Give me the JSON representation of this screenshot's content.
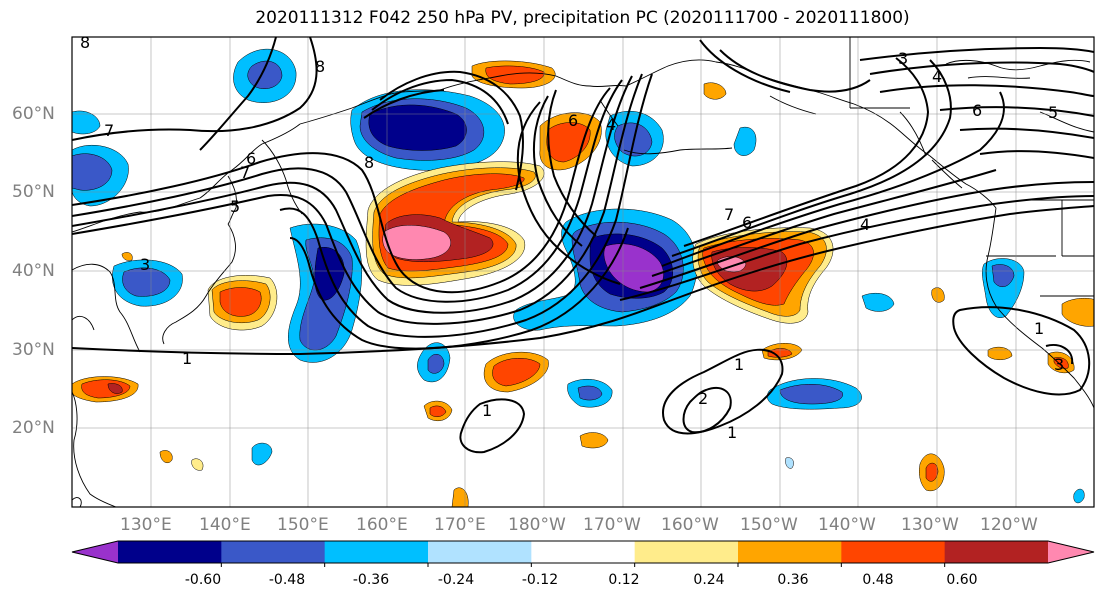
{
  "title": "2020111312 F042 250 hPa PV, precipitation PC (2020111700 - 2020111800)",
  "lon_labels": [
    "130°E",
    "140°E",
    "150°E",
    "160°E",
    "170°E",
    "180°W",
    "170°W",
    "160°W",
    "150°W",
    "140°W",
    "130°W",
    "120°W"
  ],
  "lat_labels": [
    "60°N",
    "50°N",
    "40°N",
    "30°N",
    "20°N"
  ],
  "colorbar": {
    "colors": [
      "#9932cc",
      "#00008b",
      "#3a58c8",
      "#00bfff",
      "#b0e2ff",
      "#ffffff",
      "#ffec8b",
      "#ffa500",
      "#ff4500",
      "#b22222",
      "#ff88b0"
    ],
    "tick_labels": [
      "-0.60",
      "-0.48",
      "-0.36",
      "-0.24",
      "-0.12",
      "0.12",
      "0.24",
      "0.36",
      "0.48",
      "0.60"
    ]
  },
  "contour_labels": [
    "8",
    "8",
    "7",
    "7",
    "6",
    "5",
    "3",
    "4",
    "6",
    "5",
    "7",
    "6",
    "4",
    "1",
    "1",
    "2",
    "1",
    "1",
    "3",
    "6",
    "8",
    "1",
    "3",
    "4"
  ]
}
